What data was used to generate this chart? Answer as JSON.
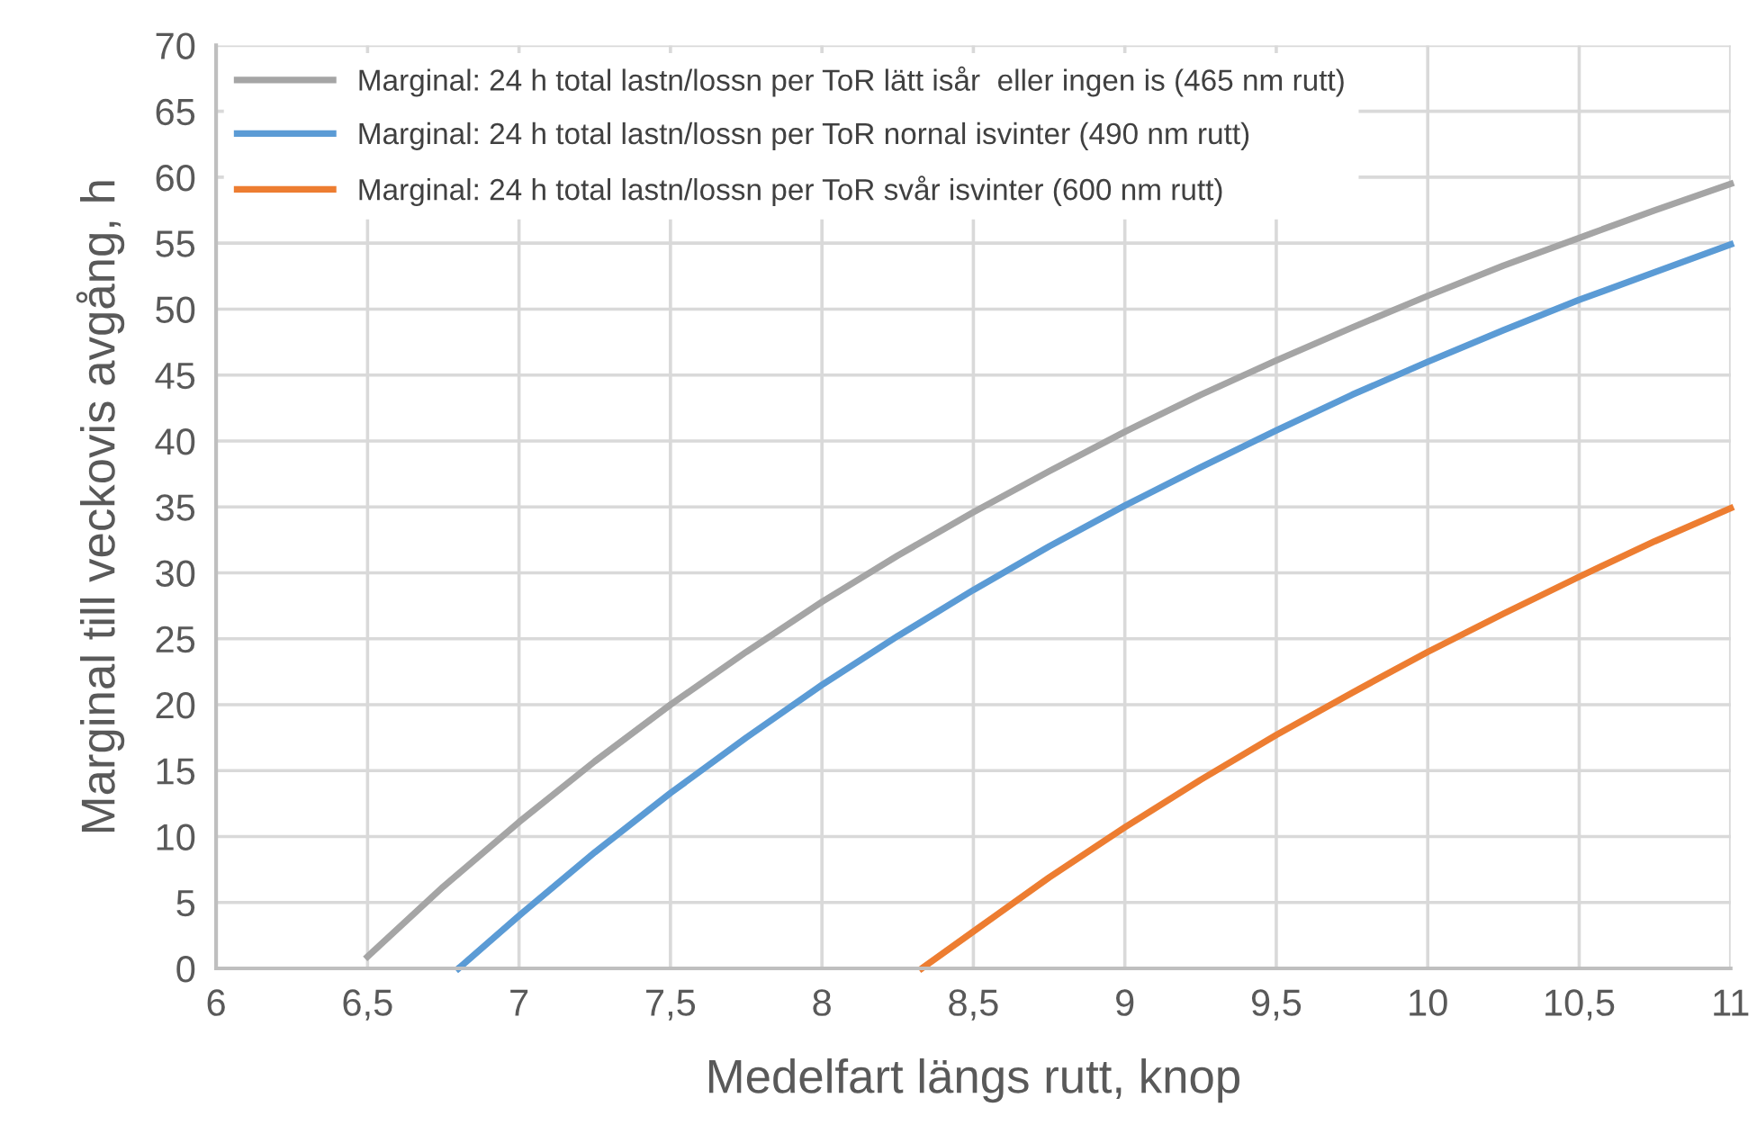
{
  "chart_data": {
    "type": "line",
    "xlabel": "Medelfart längs rutt, knop",
    "ylabel": "Marginal till veckovis avgång, h",
    "xlim": [
      6,
      11
    ],
    "xticks": [
      6,
      {
        "value": 6.5,
        "label": "6,5"
      },
      7,
      {
        "value": 7.5,
        "label": "7,5"
      },
      8,
      {
        "value": 8.5,
        "label": "8,5"
      },
      9,
      {
        "value": 9.5,
        "label": "9,5"
      },
      10,
      {
        "value": 10.5,
        "label": "10,5"
      },
      11
    ],
    "ylim": [
      0,
      70
    ],
    "yticks": [
      0,
      5,
      10,
      15,
      20,
      25,
      30,
      35,
      40,
      45,
      50,
      55,
      60,
      65,
      70
    ],
    "grid": true,
    "legend": "top left",
    "marker": "none",
    "line_style": "solid",
    "series": [
      {
        "name": "Marginal: 24 h total lastn/lossn per ToR lätt isår  eller ingen is (465 nm rutt)",
        "color": "#a5a5a5",
        "x": [
          6.5,
          6.75,
          7,
          7.25,
          7.5,
          7.75,
          8,
          8.25,
          8.5,
          8.75,
          9,
          9.25,
          9.5,
          9.75,
          10,
          10.25,
          10.5,
          10.75,
          11
        ],
        "values": [
          0.9,
          6.2,
          11.1,
          15.7,
          20,
          24,
          27.8,
          31.3,
          34.6,
          37.7,
          40.7,
          43.5,
          46.1,
          48.6,
          51,
          53.3,
          55.4,
          57.5,
          59.5
        ]
      },
      {
        "name": "Marginal: 24 h total lastn/lossn per ToR nornal isvinter (490 nm rutt)",
        "color": "#5b9bd5",
        "x": [
          6.8,
          7,
          7.25,
          7.5,
          7.75,
          8,
          8.25,
          8.5,
          8.75,
          9,
          9.25,
          9.5,
          9.75,
          10,
          10.25,
          10.5,
          10.75,
          11
        ],
        "values": [
          0,
          4,
          8.8,
          13.3,
          17.5,
          21.5,
          25.2,
          28.7,
          32,
          35.1,
          38,
          40.8,
          43.5,
          46,
          48.4,
          50.7,
          52.8,
          54.9
        ]
      },
      {
        "name": "Marginal: 24 h total lastn/lossn per ToR svår isvinter (600 nm rutt)",
        "color": "#ed7d31",
        "x": [
          8.33,
          8.5,
          8.75,
          9,
          9.25,
          9.5,
          9.75,
          10,
          10.25,
          10.5,
          10.75,
          11
        ],
        "values": [
          0,
          2.8,
          6.9,
          10.7,
          14.3,
          17.7,
          20.9,
          24,
          26.9,
          29.7,
          32.4,
          34.9
        ]
      }
    ]
  }
}
